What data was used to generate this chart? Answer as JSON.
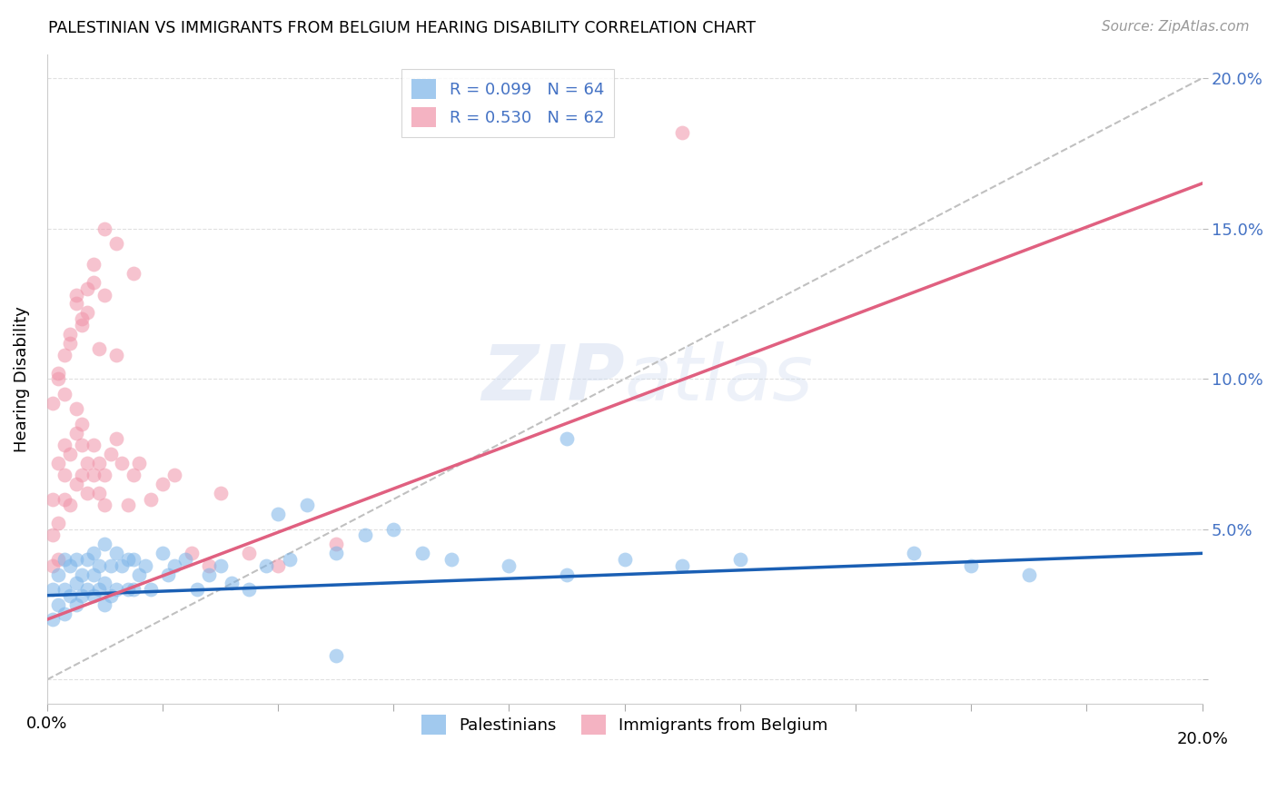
{
  "title": "PALESTINIAN VS IMMIGRANTS FROM BELGIUM HEARING DISABILITY CORRELATION CHART",
  "source": "Source: ZipAtlas.com",
  "ylabel": "Hearing Disability",
  "xlim": [
    0.0,
    0.2
  ],
  "ylim": [
    -0.008,
    0.208
  ],
  "yticks": [
    0.0,
    0.05,
    0.1,
    0.15,
    0.2
  ],
  "ytick_labels": [
    "",
    "5.0%",
    "10.0%",
    "15.0%",
    "20.0%"
  ],
  "xticks": [
    0.0,
    0.02,
    0.04,
    0.06,
    0.08,
    0.1,
    0.12,
    0.14,
    0.16,
    0.18,
    0.2
  ],
  "blue_R": 0.099,
  "blue_N": 64,
  "pink_R": 0.53,
  "pink_N": 62,
  "legend_label1": "Palestinians",
  "legend_label2": "Immigrants from Belgium",
  "blue_color": "#7ab3e8",
  "pink_color": "#f093a8",
  "blue_line_color": "#1a5fb4",
  "pink_line_color": "#e06080",
  "diagonal_color": "#c0c0c0",
  "blue_line_x": [
    0.0,
    0.2
  ],
  "blue_line_y": [
    0.028,
    0.042
  ],
  "pink_line_x": [
    0.0,
    0.2
  ],
  "pink_line_y": [
    0.02,
    0.165
  ],
  "blue_scatter_x": [
    0.001,
    0.001,
    0.002,
    0.002,
    0.003,
    0.003,
    0.003,
    0.004,
    0.004,
    0.005,
    0.005,
    0.005,
    0.006,
    0.006,
    0.007,
    0.007,
    0.008,
    0.008,
    0.008,
    0.009,
    0.009,
    0.01,
    0.01,
    0.01,
    0.011,
    0.011,
    0.012,
    0.012,
    0.013,
    0.014,
    0.014,
    0.015,
    0.015,
    0.016,
    0.017,
    0.018,
    0.02,
    0.021,
    0.022,
    0.024,
    0.026,
    0.028,
    0.03,
    0.032,
    0.035,
    0.038,
    0.04,
    0.042,
    0.045,
    0.05,
    0.055,
    0.06,
    0.065,
    0.07,
    0.08,
    0.09,
    0.1,
    0.11,
    0.12,
    0.15,
    0.16,
    0.17,
    0.09,
    0.05
  ],
  "blue_scatter_y": [
    0.03,
    0.02,
    0.035,
    0.025,
    0.04,
    0.03,
    0.022,
    0.038,
    0.028,
    0.032,
    0.04,
    0.025,
    0.035,
    0.028,
    0.04,
    0.03,
    0.042,
    0.035,
    0.028,
    0.038,
    0.03,
    0.045,
    0.032,
    0.025,
    0.038,
    0.028,
    0.042,
    0.03,
    0.038,
    0.04,
    0.03,
    0.04,
    0.03,
    0.035,
    0.038,
    0.03,
    0.042,
    0.035,
    0.038,
    0.04,
    0.03,
    0.035,
    0.038,
    0.032,
    0.03,
    0.038,
    0.055,
    0.04,
    0.058,
    0.042,
    0.048,
    0.05,
    0.042,
    0.04,
    0.038,
    0.035,
    0.04,
    0.038,
    0.04,
    0.042,
    0.038,
    0.035,
    0.08,
    0.008
  ],
  "pink_scatter_x": [
    0.001,
    0.001,
    0.001,
    0.002,
    0.002,
    0.002,
    0.003,
    0.003,
    0.003,
    0.004,
    0.004,
    0.005,
    0.005,
    0.005,
    0.006,
    0.006,
    0.006,
    0.007,
    0.007,
    0.008,
    0.008,
    0.009,
    0.009,
    0.01,
    0.01,
    0.011,
    0.012,
    0.013,
    0.014,
    0.015,
    0.016,
    0.018,
    0.02,
    0.022,
    0.025,
    0.028,
    0.03,
    0.035,
    0.04,
    0.05,
    0.002,
    0.003,
    0.004,
    0.005,
    0.006,
    0.007,
    0.008,
    0.01,
    0.012,
    0.015,
    0.11,
    0.001,
    0.002,
    0.003,
    0.004,
    0.005,
    0.006,
    0.007,
    0.008,
    0.009,
    0.01,
    0.012
  ],
  "pink_scatter_y": [
    0.038,
    0.048,
    0.06,
    0.04,
    0.052,
    0.072,
    0.06,
    0.068,
    0.078,
    0.058,
    0.075,
    0.065,
    0.082,
    0.09,
    0.068,
    0.078,
    0.085,
    0.062,
    0.072,
    0.068,
    0.078,
    0.072,
    0.062,
    0.058,
    0.068,
    0.075,
    0.08,
    0.072,
    0.058,
    0.068,
    0.072,
    0.06,
    0.065,
    0.068,
    0.042,
    0.038,
    0.062,
    0.042,
    0.038,
    0.045,
    0.102,
    0.095,
    0.112,
    0.128,
    0.118,
    0.122,
    0.132,
    0.128,
    0.108,
    0.135,
    0.182,
    0.092,
    0.1,
    0.108,
    0.115,
    0.125,
    0.12,
    0.13,
    0.138,
    0.11,
    0.15,
    0.145
  ]
}
